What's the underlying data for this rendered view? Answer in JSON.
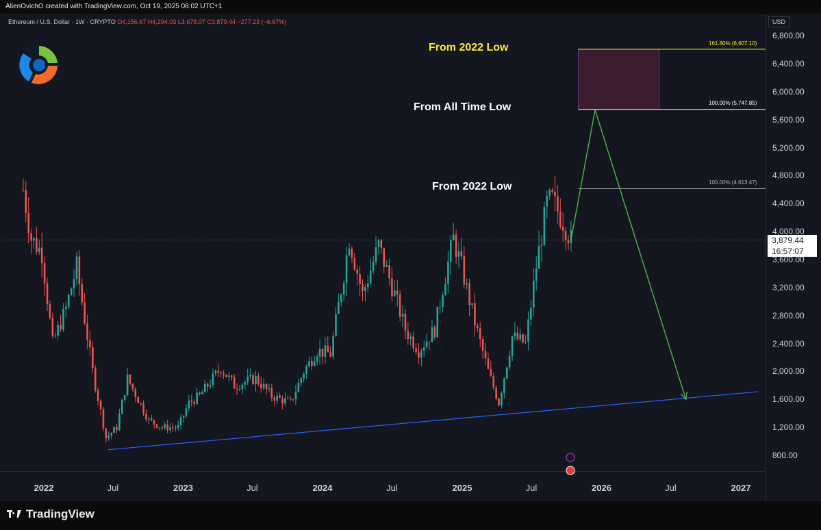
{
  "header": {
    "creator_text": "AlienOvichO created with TradingView.com, Oct 19, 2025 08:02 UTC+1"
  },
  "symbol": {
    "name": "Ethereum / U.S. Dollar · 1W · CRYPTO",
    "ohlc": "O4,156.67  H4,294.03  L3,678.07  C3,879.44  −277.23 (−6.67%)"
  },
  "footer": {
    "brand": "TradingView"
  },
  "colors": {
    "background": "#14171f",
    "up": "#26a69a",
    "down": "#ef5350",
    "projection": "#4caf50",
    "trendline": "#2962ff",
    "target_zone": "#4a1f36",
    "highlight_text": "#ffeb3b"
  },
  "annotations": {
    "a1": "From 2022 Low",
    "a2": "From All Time Low",
    "a3": "From 2022 Low"
  },
  "fib_labels": {
    "f1": "161.80% (6,607.10)",
    "f2": "100.00% (5,747.85)",
    "f3": "100.00% (4,613.47)"
  },
  "price_axis": {
    "currency": "USD",
    "current_price": "3,879.44",
    "countdown": "16:57:07"
  },
  "chart_data": {
    "type": "candlestick",
    "title": "Ethereum / U.S. Dollar · 1W · CRYPTO",
    "ylim": [
      540,
      6980
    ],
    "yticks": [
      "6,800.00",
      "6,400.00",
      "6,000.00",
      "5,600.00",
      "5,200.00",
      "4,800.00",
      "4,400.00",
      "4,000.00",
      "3,600.00",
      "3,200.00",
      "2,800.00",
      "2,400.00",
      "2,000.00",
      "1,600.00",
      "1,200.00",
      "800.00"
    ],
    "ytick_values": [
      6800,
      6400,
      6000,
      5600,
      5200,
      4800,
      4400,
      4000,
      3600,
      3200,
      2800,
      2400,
      2000,
      1600,
      1200,
      800
    ],
    "xticks": [
      "2022",
      "Jul",
      "2023",
      "Jul",
      "2024",
      "Jul",
      "2025",
      "Jul",
      "2026",
      "Jul",
      "2027"
    ],
    "xtick_dates": [
      "2022-01-01",
      "2022-07-01",
      "2023-01-01",
      "2023-07-01",
      "2024-01-01",
      "2024-07-01",
      "2025-01-01",
      "2025-07-01",
      "2026-01-01",
      "2026-07-01",
      "2027-01-01"
    ],
    "xtick_bold": [
      true,
      false,
      true,
      false,
      true,
      false,
      true,
      false,
      true,
      false,
      true
    ],
    "grid": false,
    "fib_levels": [
      {
        "label": "161.80%",
        "price": 6607.1
      },
      {
        "label": "100.00%",
        "price": 5747.85
      },
      {
        "label": "100.00%",
        "price": 4613.47
      }
    ],
    "target_zone": {
      "start": "2025-11-01",
      "end": "2026-06-01",
      "low": 5747.85,
      "high": 6607.1
    },
    "support_line": [
      [
        "2022-06-18",
        880
      ],
      [
        "2027-02-15",
        1710
      ]
    ],
    "projection_path": [
      [
        "2025-10-13",
        3880
      ],
      [
        "2025-12-15",
        5740
      ],
      [
        "2026-08-10",
        1600
      ]
    ],
    "last_price": 3879.44,
    "anchors": [
      [
        "2021-11-08",
        4600
      ],
      [
        "2021-11-29",
        3900
      ],
      [
        "2021-12-27",
        3700
      ],
      [
        "2022-01-24",
        2400
      ],
      [
        "2022-02-28",
        2900
      ],
      [
        "2022-03-28",
        3500
      ],
      [
        "2022-05-09",
        2000
      ],
      [
        "2022-06-13",
        1050
      ],
      [
        "2022-07-11",
        1200
      ],
      [
        "2022-08-08",
        1900
      ],
      [
        "2022-09-05",
        1600
      ],
      [
        "2022-10-03",
        1300
      ],
      [
        "2022-11-07",
        1200
      ],
      [
        "2022-12-19",
        1200
      ],
      [
        "2023-01-16",
        1550
      ],
      [
        "2023-02-13",
        1650
      ],
      [
        "2023-04-10",
        2050
      ],
      [
        "2023-05-15",
        1800
      ],
      [
        "2023-07-10",
        1900
      ],
      [
        "2023-08-21",
        1650
      ],
      [
        "2023-10-09",
        1550
      ],
      [
        "2023-11-13",
        2000
      ],
      [
        "2023-12-18",
        2300
      ],
      [
        "2024-01-22",
        2250
      ],
      [
        "2024-02-26",
        3400
      ],
      [
        "2024-03-11",
        3900
      ],
      [
        "2024-04-15",
        3100
      ],
      [
        "2024-05-27",
        3800
      ],
      [
        "2024-07-08",
        3100
      ],
      [
        "2024-08-05",
        2600
      ],
      [
        "2024-09-09",
        2300
      ],
      [
        "2024-10-21",
        2600
      ],
      [
        "2024-11-11",
        3200
      ],
      [
        "2024-12-09",
        3900
      ],
      [
        "2024-12-30",
        3500
      ],
      [
        "2025-02-03",
        2700
      ],
      [
        "2025-03-10",
        2000
      ],
      [
        "2025-04-07",
        1550
      ],
      [
        "2025-05-12",
        2500
      ],
      [
        "2025-06-16",
        2400
      ],
      [
        "2025-07-14",
        3500
      ],
      [
        "2025-08-11",
        4400
      ],
      [
        "2025-08-25",
        4450
      ],
      [
        "2025-09-22",
        4150
      ],
      [
        "2025-10-13",
        3880
      ]
    ]
  }
}
